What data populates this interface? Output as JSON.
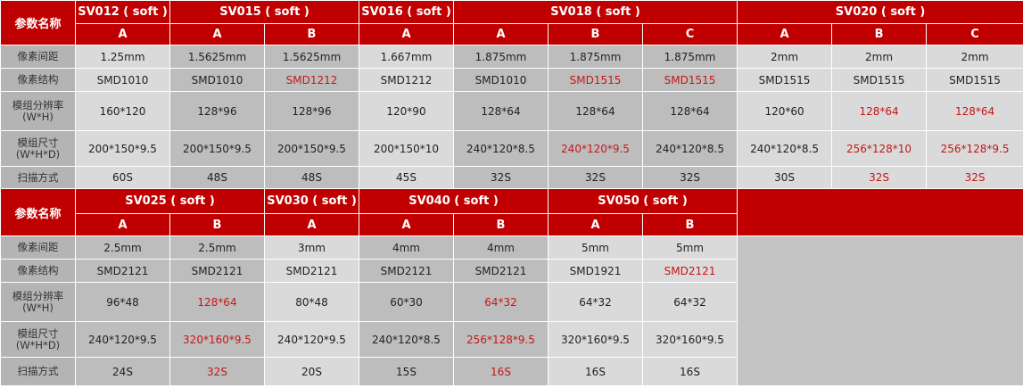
{
  "colors": {
    "header": "#c00000",
    "highlight_text": "#c41818",
    "light_cell": "#dadada",
    "dark_cell": "#bdbdbd"
  },
  "row_labels": [
    "像素间距",
    "像素结构",
    "模组分辨率\n(W*H)",
    "模组尺寸\n(W*H*D)",
    "扫描方式"
  ],
  "param_header": "参数名称",
  "tables": [
    {
      "groups": [
        {
          "name": "SV012 ( soft )",
          "shade": "lt",
          "variants": [
            {
              "label": "A",
              "values": [
                "1.25mm",
                "SMD1010",
                "160*120",
                "200*150*9.5",
                "60S"
              ],
              "red": []
            }
          ]
        },
        {
          "name": "SV015 ( soft )",
          "shade": "dk",
          "variants": [
            {
              "label": "A",
              "values": [
                "1.5625mm",
                "SMD1010",
                "128*96",
                "200*150*9.5",
                "48S"
              ],
              "red": []
            },
            {
              "label": "B",
              "values": [
                "1.5625mm",
                "SMD1212",
                "128*96",
                "200*150*9.5",
                "48S"
              ],
              "red": [
                1
              ]
            }
          ]
        },
        {
          "name": "SV016 ( soft )",
          "shade": "lt",
          "variants": [
            {
              "label": "A",
              "values": [
                "1.667mm",
                "SMD1212",
                "120*90",
                "200*150*10",
                "45S"
              ],
              "red": []
            }
          ]
        },
        {
          "name": "SV018 ( soft )",
          "shade": "dk",
          "variants": [
            {
              "label": "A",
              "values": [
                "1.875mm",
                "SMD1010",
                "128*64",
                "240*120*8.5",
                "32S"
              ],
              "red": []
            },
            {
              "label": "B",
              "values": [
                "1.875mm",
                "SMD1515",
                "128*64",
                "240*120*9.5",
                "32S"
              ],
              "red": [
                1,
                3
              ]
            },
            {
              "label": "C",
              "values": [
                "1.875mm",
                "SMD1515",
                "128*64",
                "240*120*8.5",
                "32S"
              ],
              "red": [
                1
              ]
            }
          ]
        },
        {
          "name": "SV020 ( soft )",
          "shade": "lt",
          "variants": [
            {
              "label": "A",
              "values": [
                "2mm",
                "SMD1515",
                "120*60",
                "240*120*8.5",
                "30S"
              ],
              "red": []
            },
            {
              "label": "B",
              "values": [
                "2mm",
                "SMD1515",
                "128*64",
                "256*128*10",
                "32S"
              ],
              "red": [
                2,
                3,
                4
              ]
            },
            {
              "label": "C",
              "values": [
                "2mm",
                "SMD1515",
                "128*64",
                "256*128*9.5",
                "32S"
              ],
              "red": [
                2,
                3,
                4
              ]
            }
          ]
        }
      ]
    },
    {
      "groups": [
        {
          "name": "SV025 ( soft )",
          "shade": "dk",
          "variants": [
            {
              "label": "A",
              "values": [
                "2.5mm",
                "SMD2121",
                "96*48",
                "240*120*9.5",
                "24S"
              ],
              "red": []
            },
            {
              "label": "B",
              "values": [
                "2.5mm",
                "SMD2121",
                "128*64",
                "320*160*9.5",
                "32S"
              ],
              "red": [
                2,
                3,
                4
              ]
            }
          ]
        },
        {
          "name": "SV030 ( soft )",
          "shade": "lt",
          "variants": [
            {
              "label": "A",
              "values": [
                "3mm",
                "SMD2121",
                "80*48",
                "240*120*9.5",
                "20S"
              ],
              "red": []
            }
          ]
        },
        {
          "name": "SV040 ( soft )",
          "shade": "dk",
          "variants": [
            {
              "label": "A",
              "values": [
                "4mm",
                "SMD2121",
                "60*30",
                "240*120*8.5",
                "15S"
              ],
              "red": []
            },
            {
              "label": "B",
              "values": [
                "4mm",
                "SMD2121",
                "64*32",
                "256*128*9.5",
                "16S"
              ],
              "red": [
                2,
                3,
                4
              ]
            }
          ]
        },
        {
          "name": "SV050 ( soft )",
          "shade": "lt",
          "variants": [
            {
              "label": "A",
              "values": [
                "5mm",
                "SMD1921",
                "64*32",
                "320*160*9.5",
                "16S"
              ],
              "red": []
            },
            {
              "label": "B",
              "values": [
                "5mm",
                "SMD2121",
                "64*32",
                "320*160*9.5",
                "16S"
              ],
              "red": [
                1
              ]
            }
          ]
        }
      ]
    }
  ]
}
